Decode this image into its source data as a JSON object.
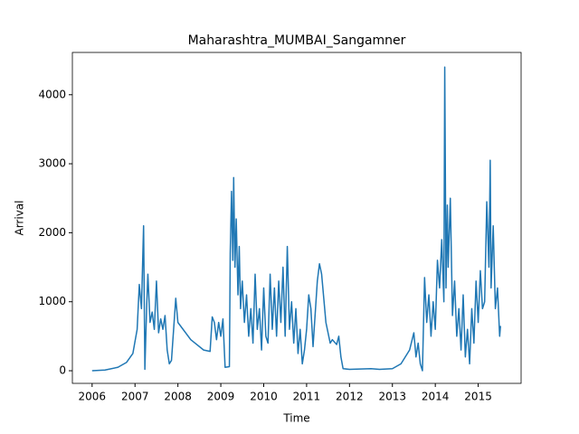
{
  "chart_data": {
    "type": "line",
    "title": "Maharashtra_MUMBAI_Sangamner",
    "x_label": "Time",
    "y_label": "Arrival",
    "xlim": [
      2005.54,
      2016.0
    ],
    "ylim": [
      -183,
      4613
    ],
    "xticks": [
      2006,
      2007,
      2008,
      2009,
      2010,
      2011,
      2012,
      2013,
      2014,
      2015
    ],
    "yticks": [
      0,
      1000,
      2000,
      3000,
      4000
    ],
    "series": [
      {
        "name": "Arrival",
        "color": "#1f77b4",
        "x": [
          2006.0,
          2006.3,
          2006.6,
          2006.8,
          2006.95,
          2007.05,
          2007.1,
          2007.15,
          2007.2,
          2007.23,
          2007.27,
          2007.3,
          2007.35,
          2007.4,
          2007.45,
          2007.5,
          2007.55,
          2007.6,
          2007.65,
          2007.7,
          2007.75,
          2007.8,
          2007.85,
          2007.9,
          2007.95,
          2008.0,
          2008.3,
          2008.6,
          2008.75,
          2008.8,
          2008.85,
          2008.9,
          2008.95,
          2009.0,
          2009.05,
          2009.1,
          2009.2,
          2009.22,
          2009.25,
          2009.28,
          2009.3,
          2009.33,
          2009.36,
          2009.4,
          2009.43,
          2009.46,
          2009.5,
          2009.55,
          2009.6,
          2009.65,
          2009.7,
          2009.75,
          2009.8,
          2009.85,
          2009.9,
          2009.95,
          2010.0,
          2010.05,
          2010.1,
          2010.15,
          2010.2,
          2010.25,
          2010.3,
          2010.35,
          2010.4,
          2010.45,
          2010.5,
          2010.55,
          2010.6,
          2010.65,
          2010.7,
          2010.75,
          2010.8,
          2010.85,
          2010.9,
          2010.95,
          2011.0,
          2011.05,
          2011.1,
          2011.15,
          2011.25,
          2011.3,
          2011.35,
          2011.45,
          2011.55,
          2011.6,
          2011.7,
          2011.75,
          2011.8,
          2011.85,
          2012.0,
          2012.5,
          2012.7,
          2013.0,
          2013.2,
          2013.4,
          2013.5,
          2013.55,
          2013.6,
          2013.65,
          2013.7,
          2013.75,
          2013.8,
          2013.85,
          2013.9,
          2013.95,
          2014.0,
          2014.05,
          2014.1,
          2014.15,
          2014.2,
          2014.22,
          2014.25,
          2014.28,
          2014.3,
          2014.35,
          2014.4,
          2014.45,
          2014.5,
          2014.55,
          2014.6,
          2014.65,
          2014.7,
          2014.75,
          2014.8,
          2014.85,
          2014.9,
          2014.95,
          2015.0,
          2015.05,
          2015.1,
          2015.15,
          2015.2,
          2015.25,
          2015.28,
          2015.3,
          2015.35,
          2015.4,
          2015.45,
          2015.5,
          2015.52
        ],
        "values": [
          0,
          10,
          50,
          120,
          250,
          600,
          1250,
          900,
          2100,
          20,
          900,
          1400,
          700,
          850,
          600,
          1300,
          550,
          750,
          600,
          800,
          300,
          100,
          150,
          600,
          1050,
          700,
          450,
          300,
          280,
          780,
          700,
          450,
          700,
          500,
          750,
          50,
          60,
          1700,
          2600,
          1600,
          2800,
          1500,
          2200,
          1100,
          1800,
          900,
          1300,
          700,
          1100,
          500,
          900,
          400,
          1400,
          600,
          900,
          300,
          1200,
          500,
          400,
          1400,
          600,
          1200,
          500,
          1300,
          700,
          1500,
          500,
          1800,
          600,
          1000,
          400,
          900,
          250,
          600,
          100,
          300,
          600,
          1100,
          900,
          350,
          1300,
          1550,
          1400,
          700,
          400,
          450,
          380,
          500,
          200,
          30,
          20,
          30,
          20,
          30,
          100,
          300,
          550,
          200,
          400,
          100,
          0,
          1350,
          700,
          1100,
          500,
          1000,
          600,
          1600,
          1200,
          1900,
          1000,
          4400,
          1200,
          2400,
          1500,
          2500,
          800,
          1300,
          500,
          900,
          300,
          1100,
          200,
          600,
          100,
          900,
          400,
          1300,
          700,
          1450,
          900,
          1000,
          2450,
          1500,
          3050,
          1200,
          2100,
          900,
          1200,
          500,
          650
        ]
      }
    ]
  }
}
